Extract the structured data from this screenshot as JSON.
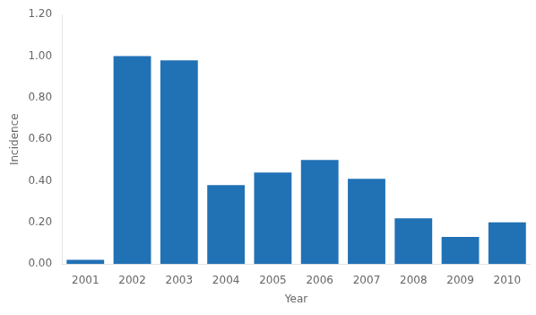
{
  "chart_data": {
    "type": "bar",
    "categories": [
      "2001",
      "2002",
      "2003",
      "2004",
      "2005",
      "2006",
      "2007",
      "2008",
      "2009",
      "2010"
    ],
    "values": [
      0.02,
      1.0,
      0.98,
      0.38,
      0.44,
      0.5,
      0.41,
      0.22,
      0.13,
      0.2
    ],
    "color": "#2171b5",
    "xlabel": "Year",
    "ylabel": "Incidence",
    "ylim": [
      0,
      1.2
    ],
    "yticks": [
      {
        "value": 0,
        "label": "0.00"
      },
      {
        "value": 0.2,
        "label": "0.20"
      },
      {
        "value": 0.4,
        "label": "0.40"
      },
      {
        "value": 0.6,
        "label": "0.60"
      },
      {
        "value": 0.8,
        "label": "0.80"
      },
      {
        "value": 1.0,
        "label": "1.00"
      },
      {
        "value": 1.2,
        "label": "1.20"
      }
    ],
    "grid": false
  }
}
